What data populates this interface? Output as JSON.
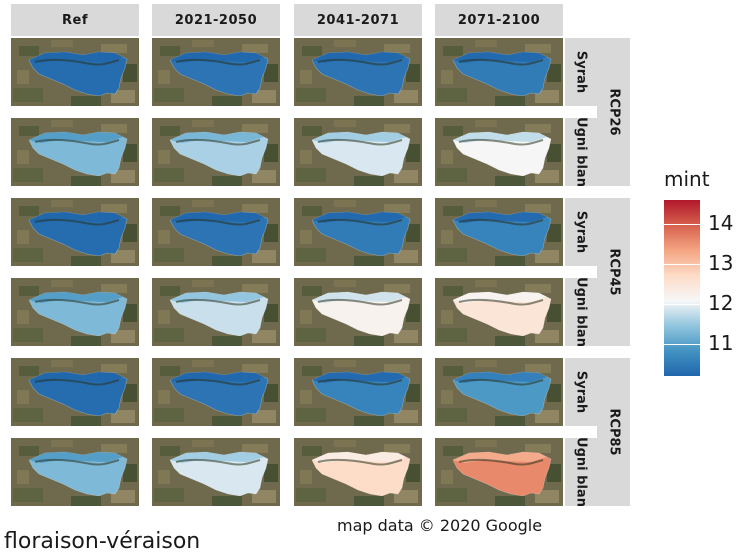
{
  "chart_data": {
    "type": "heatmap",
    "facet_columns": [
      "Ref",
      "2021-2050",
      "2041-2071",
      "2071-2100"
    ],
    "facet_rows": [
      {
        "variety": "Syrah",
        "scenario": "RCP26"
      },
      {
        "variety": "Ugni blan",
        "scenario": "RCP26"
      },
      {
        "variety": "Syrah",
        "scenario": "RCP45"
      },
      {
        "variety": "Ugni blan",
        "scenario": "RCP45"
      },
      {
        "variety": "Syrah",
        "scenario": "RCP85"
      },
      {
        "variety": "Ugni blan",
        "scenario": "RCP85"
      }
    ],
    "scenarios": [
      "RCP26",
      "RCP45",
      "RCP85"
    ],
    "varieties": [
      "Syrah",
      "Ugni blan"
    ],
    "values": [
      [
        10.3,
        10.4,
        10.4,
        10.5
      ],
      [
        11.3,
        11.6,
        11.9,
        12.1
      ],
      [
        10.3,
        10.4,
        10.5,
        10.6
      ],
      [
        11.3,
        11.8,
        12.2,
        12.5
      ],
      [
        10.3,
        10.4,
        10.6,
        10.9
      ],
      [
        11.3,
        11.9,
        12.7,
        13.6
      ]
    ],
    "legend": {
      "title": "mint",
      "ticks": [
        14,
        13,
        12,
        11
      ],
      "range": [
        10.2,
        14.6
      ],
      "colors": [
        "#2166ac",
        "#4393c3",
        "#92c5de",
        "#f7f7f7",
        "#fddbc7",
        "#f4a582",
        "#d6604d",
        "#b2182b"
      ]
    },
    "caption": "map data © 2020 Google",
    "title": "floraison-véraison"
  }
}
